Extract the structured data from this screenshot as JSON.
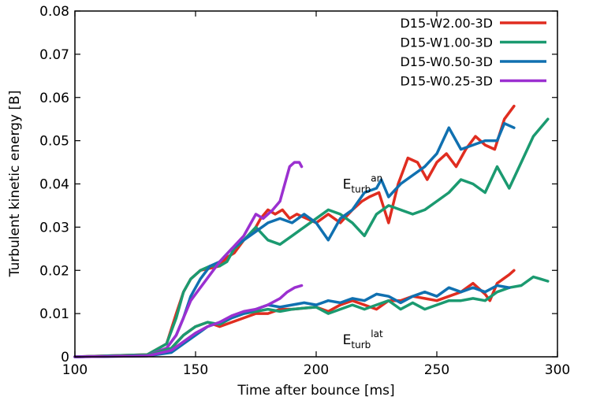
{
  "chart_data": {
    "type": "line",
    "xlabel": "Time after bounce [ms]",
    "ylabel": "Turbulent kinetic energy [B]",
    "xlim": [
      100,
      300
    ],
    "ylim": [
      0,
      0.08
    ],
    "xticks": [
      100,
      150,
      200,
      250,
      300
    ],
    "yticks": [
      0,
      0.01,
      0.02,
      0.03,
      0.04,
      0.05,
      0.06,
      0.07,
      0.08
    ],
    "xtick_labels": [
      "100",
      "150",
      "200",
      "250",
      "300"
    ],
    "ytick_labels": [
      "0",
      "0.01",
      "0.02",
      "0.03",
      "0.04",
      "0.05",
      "0.06",
      "0.07",
      "0.08"
    ],
    "grid": false,
    "legend_position": "top-right",
    "annotations": [
      {
        "base": "E",
        "sub": "turb",
        "sup": "an",
        "x": 211,
        "y": 0.04
      },
      {
        "base": "E",
        "sub": "turb",
        "sup": "lat",
        "x": 211,
        "y": 0.004
      }
    ],
    "series": [
      {
        "name": "D15-W2.00-3D",
        "group": "an",
        "color": "#e02d20",
        "x": [
          100,
          130,
          138,
          142,
          145,
          148,
          152,
          156,
          160,
          163,
          166,
          170,
          174,
          177,
          180,
          183,
          186,
          189,
          192,
          196,
          200,
          205,
          210,
          215,
          219,
          222,
          226,
          230,
          234,
          238,
          242,
          246,
          250,
          254,
          258,
          262,
          266,
          270,
          274,
          278,
          282
        ],
        "y": [
          0,
          0.0005,
          0.003,
          0.01,
          0.015,
          0.018,
          0.02,
          0.0205,
          0.021,
          0.023,
          0.024,
          0.027,
          0.029,
          0.032,
          0.034,
          0.033,
          0.034,
          0.032,
          0.033,
          0.032,
          0.031,
          0.033,
          0.031,
          0.034,
          0.036,
          0.037,
          0.038,
          0.031,
          0.04,
          0.046,
          0.045,
          0.041,
          0.045,
          0.047,
          0.044,
          0.048,
          0.051,
          0.049,
          0.048,
          0.055,
          0.058
        ]
      },
      {
        "name": "D15-W1.00-3D",
        "group": "an",
        "color": "#1b9a70",
        "x": [
          100,
          130,
          138,
          142,
          145,
          148,
          152,
          156,
          160,
          163,
          166,
          170,
          175,
          180,
          185,
          190,
          195,
          200,
          205,
          210,
          215,
          220,
          225,
          230,
          235,
          240,
          245,
          250,
          255,
          260,
          265,
          270,
          275,
          280,
          285,
          290,
          296
        ],
        "y": [
          0,
          0.0005,
          0.003,
          0.009,
          0.015,
          0.018,
          0.02,
          0.021,
          0.021,
          0.022,
          0.025,
          0.027,
          0.03,
          0.027,
          0.026,
          0.028,
          0.03,
          0.032,
          0.034,
          0.033,
          0.031,
          0.028,
          0.033,
          0.035,
          0.034,
          0.033,
          0.034,
          0.036,
          0.038,
          0.041,
          0.04,
          0.038,
          0.044,
          0.039,
          0.045,
          0.051,
          0.055
        ]
      },
      {
        "name": "D15-W0.50-3D",
        "group": "an",
        "color": "#1070b0",
        "x": [
          100,
          130,
          138,
          142,
          145,
          148,
          152,
          156,
          160,
          165,
          170,
          175,
          180,
          185,
          190,
          195,
          200,
          205,
          210,
          215,
          220,
          225,
          227,
          230,
          235,
          240,
          245,
          250,
          255,
          260,
          265,
          270,
          275,
          278,
          282
        ],
        "y": [
          0,
          0.0003,
          0.002,
          0.005,
          0.009,
          0.014,
          0.018,
          0.021,
          0.022,
          0.025,
          0.027,
          0.029,
          0.031,
          0.032,
          0.031,
          0.033,
          0.031,
          0.027,
          0.032,
          0.034,
          0.038,
          0.039,
          0.041,
          0.037,
          0.04,
          0.042,
          0.044,
          0.047,
          0.053,
          0.048,
          0.049,
          0.05,
          0.05,
          0.054,
          0.053
        ]
      },
      {
        "name": "D15-W0.25-3D",
        "group": "an",
        "color": "#9b30d0",
        "x": [
          100,
          130,
          138,
          142,
          145,
          148,
          152,
          156,
          160,
          165,
          170,
          175,
          178,
          182,
          185,
          187,
          189,
          191,
          193,
          194
        ],
        "y": [
          0,
          0.0003,
          0.002,
          0.005,
          0.009,
          0.013,
          0.016,
          0.019,
          0.022,
          0.025,
          0.028,
          0.033,
          0.032,
          0.034,
          0.036,
          0.04,
          0.044,
          0.045,
          0.045,
          0.044
        ]
      },
      {
        "group": "lat",
        "color": "#e02d20",
        "x": [
          100,
          130,
          140,
          145,
          150,
          155,
          160,
          165,
          170,
          175,
          180,
          185,
          190,
          200,
          205,
          210,
          215,
          220,
          225,
          230,
          235,
          240,
          245,
          250,
          255,
          260,
          265,
          270,
          272,
          275,
          280,
          282
        ],
        "y": [
          0,
          0.0003,
          0.002,
          0.005,
          0.007,
          0.008,
          0.007,
          0.008,
          0.009,
          0.01,
          0.01,
          0.011,
          0.011,
          0.0115,
          0.0105,
          0.012,
          0.013,
          0.012,
          0.011,
          0.013,
          0.013,
          0.014,
          0.0135,
          0.013,
          0.014,
          0.015,
          0.017,
          0.0145,
          0.013,
          0.017,
          0.019,
          0.02
        ]
      },
      {
        "group": "lat",
        "color": "#1b9a70",
        "x": [
          100,
          130,
          140,
          145,
          150,
          155,
          160,
          165,
          170,
          175,
          180,
          185,
          190,
          200,
          205,
          210,
          215,
          220,
          225,
          230,
          235,
          240,
          245,
          250,
          255,
          260,
          265,
          270,
          275,
          280,
          285,
          290,
          293,
          296
        ],
        "y": [
          0,
          0.0003,
          0.002,
          0.005,
          0.007,
          0.008,
          0.0075,
          0.009,
          0.01,
          0.0105,
          0.011,
          0.0105,
          0.011,
          0.0115,
          0.01,
          0.011,
          0.012,
          0.011,
          0.012,
          0.013,
          0.011,
          0.0125,
          0.011,
          0.012,
          0.013,
          0.013,
          0.0135,
          0.013,
          0.015,
          0.016,
          0.0165,
          0.0185,
          0.018,
          0.0175
        ]
      },
      {
        "group": "lat",
        "color": "#1070b0",
        "x": [
          100,
          130,
          140,
          145,
          150,
          155,
          160,
          165,
          170,
          175,
          180,
          185,
          190,
          195,
          200,
          205,
          210,
          215,
          220,
          225,
          230,
          235,
          240,
          245,
          250,
          255,
          260,
          265,
          270,
          275,
          280
        ],
        "y": [
          0,
          0.0002,
          0.001,
          0.003,
          0.005,
          0.007,
          0.008,
          0.009,
          0.01,
          0.011,
          0.012,
          0.0115,
          0.012,
          0.0125,
          0.012,
          0.013,
          0.0125,
          0.0135,
          0.013,
          0.0145,
          0.014,
          0.0125,
          0.014,
          0.015,
          0.014,
          0.016,
          0.015,
          0.016,
          0.015,
          0.0165,
          0.016
        ]
      },
      {
        "group": "lat",
        "color": "#9b30d0",
        "x": [
          100,
          130,
          140,
          145,
          150,
          155,
          160,
          165,
          170,
          175,
          180,
          185,
          188,
          191,
          194
        ],
        "y": [
          0,
          0.0002,
          0.0015,
          0.0035,
          0.0055,
          0.007,
          0.008,
          0.0095,
          0.0105,
          0.011,
          0.012,
          0.0135,
          0.015,
          0.016,
          0.0165
        ]
      }
    ]
  }
}
